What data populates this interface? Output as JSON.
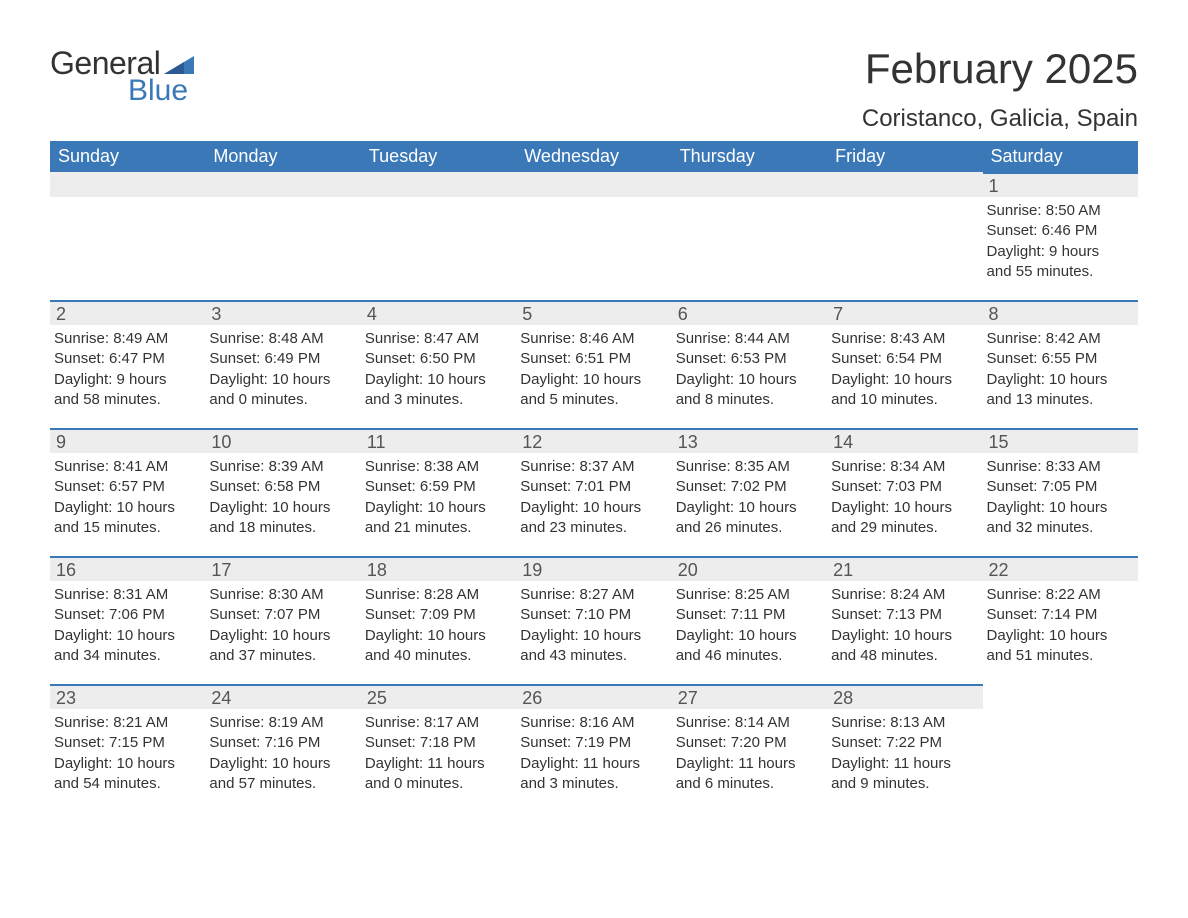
{
  "logo": {
    "general": "General",
    "blue": "Blue"
  },
  "title": "February 2025",
  "location": "Coristanco, Galicia, Spain",
  "colors": {
    "header_bg": "#3b78b8",
    "header_text": "#ffffff",
    "day_bar_bg": "#ededed",
    "day_bar_border": "#3b78b8",
    "body_text": "#333333",
    "logo_blue": "#3b78b8",
    "background": "#ffffff"
  },
  "dow": [
    "Sunday",
    "Monday",
    "Tuesday",
    "Wednesday",
    "Thursday",
    "Friday",
    "Saturday"
  ],
  "weeks": [
    [
      {
        "blank": true
      },
      {
        "blank": true
      },
      {
        "blank": true
      },
      {
        "blank": true
      },
      {
        "blank": true
      },
      {
        "blank": true
      },
      {
        "n": "1",
        "sr": "Sunrise: 8:50 AM",
        "ss": "Sunset: 6:46 PM",
        "d1": "Daylight: 9 hours",
        "d2": "and 55 minutes."
      }
    ],
    [
      {
        "n": "2",
        "sr": "Sunrise: 8:49 AM",
        "ss": "Sunset: 6:47 PM",
        "d1": "Daylight: 9 hours",
        "d2": "and 58 minutes."
      },
      {
        "n": "3",
        "sr": "Sunrise: 8:48 AM",
        "ss": "Sunset: 6:49 PM",
        "d1": "Daylight: 10 hours",
        "d2": "and 0 minutes."
      },
      {
        "n": "4",
        "sr": "Sunrise: 8:47 AM",
        "ss": "Sunset: 6:50 PM",
        "d1": "Daylight: 10 hours",
        "d2": "and 3 minutes."
      },
      {
        "n": "5",
        "sr": "Sunrise: 8:46 AM",
        "ss": "Sunset: 6:51 PM",
        "d1": "Daylight: 10 hours",
        "d2": "and 5 minutes."
      },
      {
        "n": "6",
        "sr": "Sunrise: 8:44 AM",
        "ss": "Sunset: 6:53 PM",
        "d1": "Daylight: 10 hours",
        "d2": "and 8 minutes."
      },
      {
        "n": "7",
        "sr": "Sunrise: 8:43 AM",
        "ss": "Sunset: 6:54 PM",
        "d1": "Daylight: 10 hours",
        "d2": "and 10 minutes."
      },
      {
        "n": "8",
        "sr": "Sunrise: 8:42 AM",
        "ss": "Sunset: 6:55 PM",
        "d1": "Daylight: 10 hours",
        "d2": "and 13 minutes."
      }
    ],
    [
      {
        "n": "9",
        "sr": "Sunrise: 8:41 AM",
        "ss": "Sunset: 6:57 PM",
        "d1": "Daylight: 10 hours",
        "d2": "and 15 minutes."
      },
      {
        "n": "10",
        "sr": "Sunrise: 8:39 AM",
        "ss": "Sunset: 6:58 PM",
        "d1": "Daylight: 10 hours",
        "d2": "and 18 minutes."
      },
      {
        "n": "11",
        "sr": "Sunrise: 8:38 AM",
        "ss": "Sunset: 6:59 PM",
        "d1": "Daylight: 10 hours",
        "d2": "and 21 minutes."
      },
      {
        "n": "12",
        "sr": "Sunrise: 8:37 AM",
        "ss": "Sunset: 7:01 PM",
        "d1": "Daylight: 10 hours",
        "d2": "and 23 minutes."
      },
      {
        "n": "13",
        "sr": "Sunrise: 8:35 AM",
        "ss": "Sunset: 7:02 PM",
        "d1": "Daylight: 10 hours",
        "d2": "and 26 minutes."
      },
      {
        "n": "14",
        "sr": "Sunrise: 8:34 AM",
        "ss": "Sunset: 7:03 PM",
        "d1": "Daylight: 10 hours",
        "d2": "and 29 minutes."
      },
      {
        "n": "15",
        "sr": "Sunrise: 8:33 AM",
        "ss": "Sunset: 7:05 PM",
        "d1": "Daylight: 10 hours",
        "d2": "and 32 minutes."
      }
    ],
    [
      {
        "n": "16",
        "sr": "Sunrise: 8:31 AM",
        "ss": "Sunset: 7:06 PM",
        "d1": "Daylight: 10 hours",
        "d2": "and 34 minutes."
      },
      {
        "n": "17",
        "sr": "Sunrise: 8:30 AM",
        "ss": "Sunset: 7:07 PM",
        "d1": "Daylight: 10 hours",
        "d2": "and 37 minutes."
      },
      {
        "n": "18",
        "sr": "Sunrise: 8:28 AM",
        "ss": "Sunset: 7:09 PM",
        "d1": "Daylight: 10 hours",
        "d2": "and 40 minutes."
      },
      {
        "n": "19",
        "sr": "Sunrise: 8:27 AM",
        "ss": "Sunset: 7:10 PM",
        "d1": "Daylight: 10 hours",
        "d2": "and 43 minutes."
      },
      {
        "n": "20",
        "sr": "Sunrise: 8:25 AM",
        "ss": "Sunset: 7:11 PM",
        "d1": "Daylight: 10 hours",
        "d2": "and 46 minutes."
      },
      {
        "n": "21",
        "sr": "Sunrise: 8:24 AM",
        "ss": "Sunset: 7:13 PM",
        "d1": "Daylight: 10 hours",
        "d2": "and 48 minutes."
      },
      {
        "n": "22",
        "sr": "Sunrise: 8:22 AM",
        "ss": "Sunset: 7:14 PM",
        "d1": "Daylight: 10 hours",
        "d2": "and 51 minutes."
      }
    ],
    [
      {
        "n": "23",
        "sr": "Sunrise: 8:21 AM",
        "ss": "Sunset: 7:15 PM",
        "d1": "Daylight: 10 hours",
        "d2": "and 54 minutes."
      },
      {
        "n": "24",
        "sr": "Sunrise: 8:19 AM",
        "ss": "Sunset: 7:16 PM",
        "d1": "Daylight: 10 hours",
        "d2": "and 57 minutes."
      },
      {
        "n": "25",
        "sr": "Sunrise: 8:17 AM",
        "ss": "Sunset: 7:18 PM",
        "d1": "Daylight: 11 hours",
        "d2": "and 0 minutes."
      },
      {
        "n": "26",
        "sr": "Sunrise: 8:16 AM",
        "ss": "Sunset: 7:19 PM",
        "d1": "Daylight: 11 hours",
        "d2": "and 3 minutes."
      },
      {
        "n": "27",
        "sr": "Sunrise: 8:14 AM",
        "ss": "Sunset: 7:20 PM",
        "d1": "Daylight: 11 hours",
        "d2": "and 6 minutes."
      },
      {
        "n": "28",
        "sr": "Sunrise: 8:13 AM",
        "ss": "Sunset: 7:22 PM",
        "d1": "Daylight: 11 hours",
        "d2": "and 9 minutes."
      },
      {
        "blank": true,
        "noBar": true
      }
    ]
  ]
}
